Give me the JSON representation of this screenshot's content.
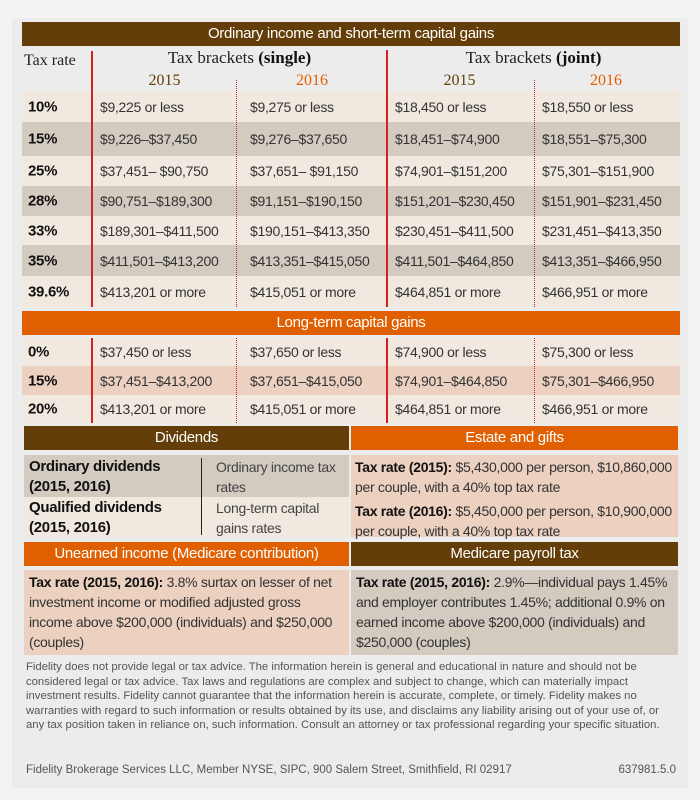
{
  "ordinary": {
    "title": "Ordinary income and short-term capital gains",
    "tax_rate_label": "Tax rate",
    "single_label": "Tax brackets ",
    "single_bold": "(single)",
    "joint_label": "Tax brackets ",
    "joint_bold": "(joint)",
    "year_2015": "2015",
    "year_2016": "2016",
    "colors": {
      "2015": "#633e08",
      "2016": "#e05f00"
    },
    "rows": [
      {
        "rate": "10%",
        "s2015": "$9,225 or less",
        "s2016": "$9,275 or less",
        "j2015": "$18,450 or less",
        "j2016": "$18,550 or less"
      },
      {
        "rate": "15%",
        "s2015": "$9,226–$37,450",
        "s2016": "$9,276–$37,650",
        "j2015": "$18,451–$74,900",
        "j2016": "$18,551–$75,300"
      },
      {
        "rate": "25%",
        "s2015": "$37,451– $90,750",
        "s2016": "$37,651– $91,150",
        "j2015": "$74,901–$151,200",
        "j2016": "$75,301–$151,900"
      },
      {
        "rate": "28%",
        "s2015": "$90,751–$189,300",
        "s2016": "$91,151–$190,150",
        "j2015": "$151,201–$230,450",
        "j2016": "$151,901–$231,450"
      },
      {
        "rate": "33%",
        "s2015": "$189,301–$411,500",
        "s2016": "$190,151–$413,350",
        "j2015": "$230,451–$411,500",
        "j2016": "$231,451–$413,350"
      },
      {
        "rate": "35%",
        "s2015": "$411,501–$413,200",
        "s2016": "$413,351–$415,050",
        "j2015": "$411,501–$464,850",
        "j2016": "$413,351–$466,950"
      },
      {
        "rate": "39.6%",
        "s2015": "$413,201 or more",
        "s2016": "$415,051 or more",
        "j2015": "$464,851 or more",
        "j2016": "$466,951 or more"
      }
    ]
  },
  "longterm": {
    "title": "Long-term capital gains",
    "rows": [
      {
        "rate": "0%",
        "s2015": "$37,450 or less",
        "s2016": "$37,650 or less",
        "j2015": "$74,900 or less",
        "j2016": "$75,300 or less"
      },
      {
        "rate": "15%",
        "s2015": "$37,451–$413,200",
        "s2016": "$37,651–$415,050",
        "j2015": "$74,901–$464,850",
        "j2016": "$75,301–$466,950"
      },
      {
        "rate": "20%",
        "s2015": "$413,201 or more",
        "s2016": "$415,051 or more",
        "j2015": "$464,851 or more",
        "j2016": "$466,951 or more"
      }
    ]
  },
  "dividends": {
    "title": "Dividends",
    "ordinary_label": "Ordinary dividends (2015, 2016)",
    "ordinary_value": "Ordinary income tax rates",
    "qualified_label": "Qualified dividends (2015, 2016)",
    "qualified_value": "Long-term capital gains rates"
  },
  "estate": {
    "title": "Estate and gifts",
    "l2015": "Tax rate (2015):",
    "t2015": " $5,430,000 per person, $10,860,000 per couple, with a 40% top tax rate",
    "l2016": "Tax rate (2016):",
    "t2016": " $5,450,000 per person, $10,900,000 per couple, with a 40% top tax rate"
  },
  "unearned": {
    "title": "Unearned income (Medicare contribution)",
    "label": "Tax rate (2015, 2016):",
    "text": " 3.8% surtax on lesser of net investment income or modified adjusted gross income above $200,000 (individuals) and $250,000 (couples)"
  },
  "medicare": {
    "title": "Medicare payroll tax",
    "label": "Tax rate (2015, 2016):",
    "text": " 2.9%—individual pays 1.45% and employer contributes 1.45%; additional 0.9% on earned income above $200,000 (individuals) and $250,000 (couples)"
  },
  "footer": {
    "disclaimer": "Fidelity does not provide legal or tax advice. The information herein is general and educational in nature and should not be considered legal or tax advice. Tax laws and regulations are complex and subject to change, which can materially impact investment results. Fidelity cannot guarantee that the information herein is accurate, complete, or timely. Fidelity makes no warranties with regard to such information or results obtained by its use, and disclaims any liability arising out of your use of, or any tax position taken in reliance on, such information. Consult an attorney or tax professional regarding your specific situation.",
    "company": "Fidelity Brokerage Services LLC, Member NYSE, SIPC, 900 Salem Street, Smithfield, RI 02917",
    "code": "637981.5.0"
  }
}
